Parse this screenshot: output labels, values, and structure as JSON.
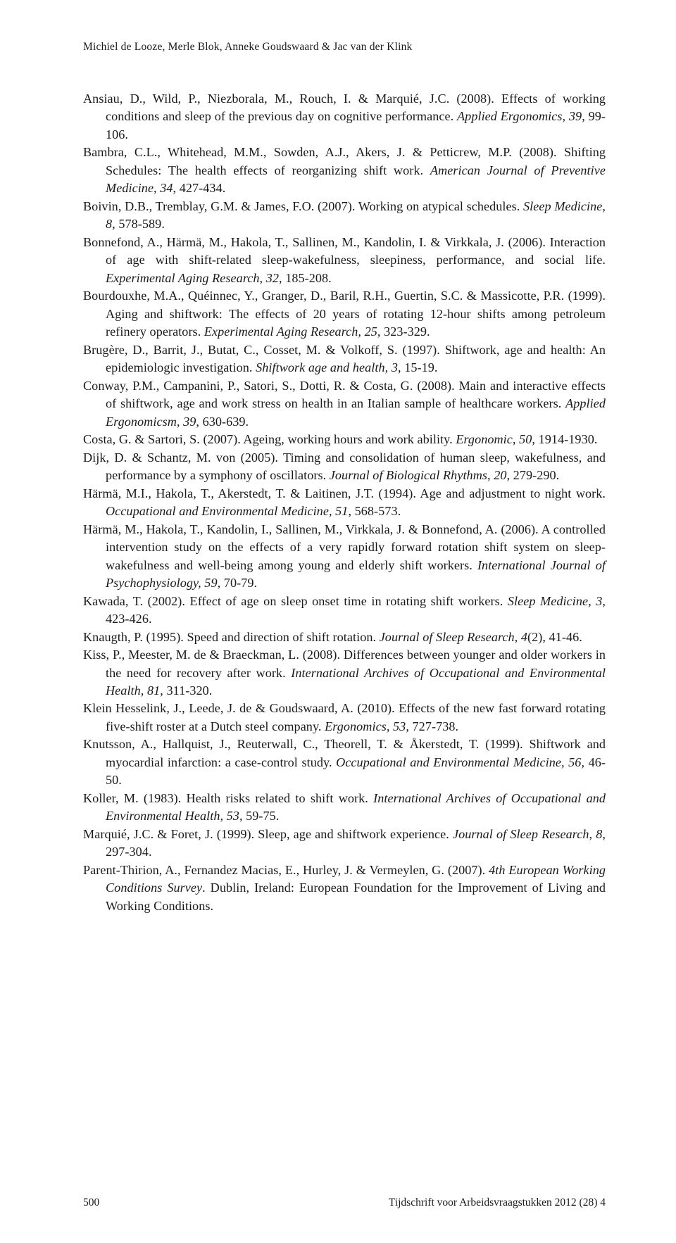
{
  "runningHead": "Michiel de Looze, Merle Blok, Anneke Goudswaard & Jac van der Klink",
  "references": [
    "Ansiau, D., Wild, P., Niezborala, M., Rouch, I. & Marquié, J.C. (2008). Effects of working conditions and sleep of the previous day on cognitive performance. <em>Applied Ergonomics, 39</em>, 99-106.",
    "Bambra, C.L., Whitehead, M.M., Sowden, A.J., Akers, J. & Petticrew, M.P. (2008). Shifting Schedules: The health effects of reorganizing shift work. <em>American Journal of Preventive Medicine, 34</em>, 427-434.",
    "Boivin, D.B., Tremblay, G.M. & James, F.O. (2007). Working on atypical schedules. <em>Sleep Medicine, 8</em>, 578-589.",
    "Bonnefond, A., Härmä, M., Hakola, T., Sallinen, M., Kandolin, I. & Virkkala, J. (2006). Interaction of age with shift-related sleep-wakefulness, sleepiness, performance, and social life. <em>Experimental Aging Research, 32</em>, 185-208.",
    "Bourdouxhe, M.A., Quéinnec, Y., Granger, D., Baril, R.H., Guertin, S.C. & Massicotte, P.R. (1999). Aging and shiftwork: The effects of 20 years of rotating 12-hour shifts among petroleum refinery operators. <em>Experimental Aging Research, 25</em>, 323-329.",
    "Brugère, D., Barrit, J., Butat, C., Cosset, M. & Volkoff, S. (1997). Shiftwork, age and health: An epidemiologic investigation. <em>Shiftwork age and health, 3</em>, 15-19.",
    "Conway, P.M., Campanini, P., Satori, S., Dotti, R. & Costa, G. (2008). Main and interactive effects of shiftwork, age and work stress on health in an Italian sample of healthcare workers. <em>Applied Ergonomicsm, 39</em>, 630-639.",
    "Costa, G. & Sartori, S. (2007). Ageing, working hours and work ability. <em>Ergonomic, 50</em>, 1914-1930.",
    "Dijk, D. & Schantz, M. von (2005). Timing and consolidation of human sleep, wakefulness, and performance by a symphony of oscillators. <em>Journal of Biological Rhythms, 20</em>, 279-290.",
    "Härmä, M.I., Hakola, T., Akerstedt, T. & Laitinen, J.T. (1994). Age and adjustment to night work. <em>Occupational and Environmental Medicine, 51</em>, 568-573.",
    "Härmä, M., Hakola, T., Kandolin, I., Sallinen, M., Virkkala, J. & Bonnefond, A. (2006). A controlled intervention study on the effects of a very rapidly forward rotation shift system on sleep-wakefulness and well-being among young and elderly shift workers. <em>International Journal of Psychophysiology, 59</em>, 70-79.",
    "Kawada, T. (2002). Effect of age on sleep onset time in rotating shift workers. <em>Sleep Medicine, 3</em>, 423-426.",
    "Knaugth, P. (1995). Speed and direction of shift rotation. <em>Journal of Sleep Research, 4</em>(2), 41-46.",
    "Kiss, P., Meester, M. de & Braeckman, L. (2008). Differences between younger and older workers in the need for recovery after work. <em>International Archives of Occupational and Environmental Health, 81</em>, 311-320.",
    "Klein Hesselink, J., Leede, J. de & Goudswaard, A. (2010). Effects of the new fast forward rotating five-shift roster at a Dutch steel company. <em>Ergonomics, 53</em>, 727-738.",
    "Knutsson, A., Hallquist, J., Reuterwall, C., Theorell, T. & Åkerstedt, T. (1999). Shiftwork and myocardial infarction: a case-control study. <em>Occupational and Environmental Medicine, 56</em>, 46-50.",
    "Koller, M. (1983). Health risks related to shift work. <em>International Archives of Occupational and Environmental Health, 53</em>, 59-75.",
    "Marquié, J.C. & Foret, J. (1999). Sleep, age and shiftwork experience. <em>Journal of Sleep Research, 8</em>, 297-304.",
    "Parent-Thirion, A., Fernandez Macias, E., Hurley, J. & Vermeylen, G. (2007). <em>4th European Working Conditions Survey</em>. Dublin, Ireland: European Foundation for the Improvement of Living and Working Conditions."
  ],
  "footerLeft": "500",
  "footerRight": "Tijdschrift voor Arbeidsvraagstukken 2012 (28) 4"
}
